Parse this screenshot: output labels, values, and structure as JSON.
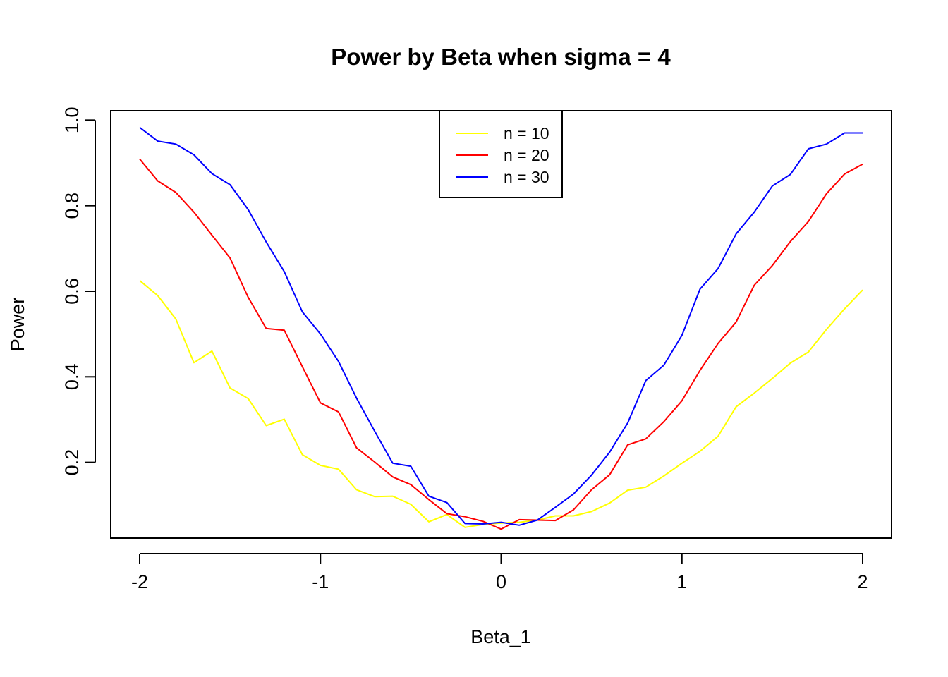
{
  "chart_data": {
    "type": "line",
    "title": "Power by Beta when sigma =  4",
    "xlabel": "Beta_1",
    "ylabel": "Power",
    "xlim": [
      -2.16,
      2.16
    ],
    "ylim": [
      0.023,
      1.022
    ],
    "xticks": [
      -2,
      -1,
      0,
      1,
      2
    ],
    "xtick_labels": [
      "-2",
      "-1",
      "0",
      "1",
      "2"
    ],
    "yticks": [
      0.2,
      0.4,
      0.6,
      0.8,
      1.0
    ],
    "ytick_labels": [
      "0.2",
      "0.4",
      "0.6",
      "0.8",
      "1.0"
    ],
    "grid": false,
    "legend_position": "top-center",
    "x": [
      -2.0,
      -1.9,
      -1.8,
      -1.7,
      -1.6,
      -1.5,
      -1.4,
      -1.3,
      -1.2,
      -1.1,
      -1.0,
      -0.9,
      -0.8,
      -0.7,
      -0.6,
      -0.5,
      -0.4,
      -0.3,
      -0.2,
      -0.1,
      0.0,
      0.1,
      0.2,
      0.3,
      0.4,
      0.5,
      0.6,
      0.7,
      0.8,
      0.9,
      1.0,
      1.1,
      1.2,
      1.3,
      1.4,
      1.5,
      1.6,
      1.7,
      1.8,
      1.9,
      2.0
    ],
    "series": [
      {
        "name": "n = 10",
        "color": "#FFFF00",
        "values": [
          0.625,
          0.59,
          0.535,
          0.433,
          0.46,
          0.374,
          0.349,
          0.286,
          0.301,
          0.218,
          0.193,
          0.184,
          0.136,
          0.12,
          0.121,
          0.102,
          0.061,
          0.078,
          0.048,
          0.055,
          0.058,
          0.06,
          0.065,
          0.075,
          0.075,
          0.085,
          0.105,
          0.135,
          0.142,
          0.168,
          0.198,
          0.226,
          0.261,
          0.33,
          0.362,
          0.396,
          0.432,
          0.458,
          0.511,
          0.559,
          0.603
        ]
      },
      {
        "name": "n = 20",
        "color": "#FF0000",
        "values": [
          0.909,
          0.858,
          0.831,
          0.785,
          0.731,
          0.678,
          0.586,
          0.513,
          0.509,
          0.424,
          0.339,
          0.318,
          0.234,
          0.201,
          0.166,
          0.148,
          0.113,
          0.08,
          0.073,
          0.062,
          0.044,
          0.066,
          0.065,
          0.064,
          0.089,
          0.136,
          0.171,
          0.241,
          0.255,
          0.295,
          0.344,
          0.415,
          0.478,
          0.528,
          0.614,
          0.66,
          0.716,
          0.763,
          0.828,
          0.874,
          0.897
        ]
      },
      {
        "name": "n = 30",
        "color": "#0000FF",
        "values": [
          0.983,
          0.951,
          0.944,
          0.919,
          0.875,
          0.849,
          0.791,
          0.715,
          0.646,
          0.552,
          0.5,
          0.436,
          0.35,
          0.273,
          0.198,
          0.191,
          0.121,
          0.106,
          0.057,
          0.056,
          0.06,
          0.053,
          0.065,
          0.095,
          0.126,
          0.17,
          0.224,
          0.292,
          0.391,
          0.427,
          0.497,
          0.605,
          0.653,
          0.734,
          0.785,
          0.846,
          0.873,
          0.933,
          0.944,
          0.97,
          0.97
        ]
      }
    ]
  }
}
